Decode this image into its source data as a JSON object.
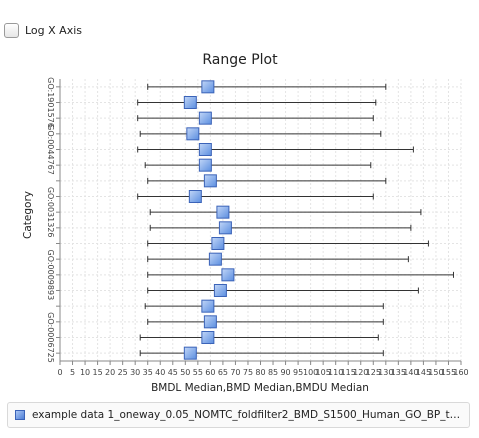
{
  "controls": {
    "log_x_label": "Log X Axis"
  },
  "chart_data": {
    "type": "range",
    "title": "Range Plot",
    "xlabel": "BMDL Median,BMD Median,BMDU Median",
    "ylabel": "Category",
    "xlim": [
      0,
      160
    ],
    "x_ticks": [
      0,
      5,
      10,
      15,
      20,
      25,
      30,
      35,
      40,
      45,
      50,
      55,
      60,
      65,
      70,
      75,
      80,
      85,
      90,
      95,
      100,
      105,
      110,
      115,
      120,
      125,
      130,
      135,
      140,
      145,
      150,
      155,
      160
    ],
    "grid": true,
    "legend_position": "bottom",
    "y_tick_labels": [
      "GO:1901576",
      "GO:0044767",
      "GO:0031326",
      "GO:0009893",
      "GO:0006725"
    ],
    "y_tick_rows": [
      1,
      4,
      8,
      12,
      16
    ],
    "series": [
      {
        "name": "example data 1_oneway_0.05_NOMTC_foldfilter2_BMD_S1500_Human_GO_BP_true_t...",
        "color": "#5b8ee0",
        "points": [
          {
            "bmdl": 35,
            "bmd": 59,
            "bmdu": 130
          },
          {
            "bmdl": 31,
            "bmd": 52,
            "bmdu": 126
          },
          {
            "bmdl": 31,
            "bmd": 58,
            "bmdu": 125
          },
          {
            "bmdl": 32,
            "bmd": 53,
            "bmdu": 128
          },
          {
            "bmdl": 31,
            "bmd": 58,
            "bmdu": 141
          },
          {
            "bmdl": 34,
            "bmd": 58,
            "bmdu": 124
          },
          {
            "bmdl": 35,
            "bmd": 60,
            "bmdu": 130
          },
          {
            "bmdl": 31,
            "bmd": 54,
            "bmdu": 125
          },
          {
            "bmdl": 36,
            "bmd": 65,
            "bmdu": 144
          },
          {
            "bmdl": 36,
            "bmd": 66,
            "bmdu": 140
          },
          {
            "bmdl": 35,
            "bmd": 63,
            "bmdu": 147
          },
          {
            "bmdl": 35,
            "bmd": 62,
            "bmdu": 139
          },
          {
            "bmdl": 35,
            "bmd": 67,
            "bmdu": 157
          },
          {
            "bmdl": 35,
            "bmd": 64,
            "bmdu": 143
          },
          {
            "bmdl": 34,
            "bmd": 59,
            "bmdu": 129
          },
          {
            "bmdl": 35,
            "bmd": 60,
            "bmdu": 129
          },
          {
            "bmdl": 32,
            "bmd": 59,
            "bmdu": 127
          },
          {
            "bmdl": 32,
            "bmd": 52,
            "bmdu": 129
          }
        ]
      }
    ]
  }
}
